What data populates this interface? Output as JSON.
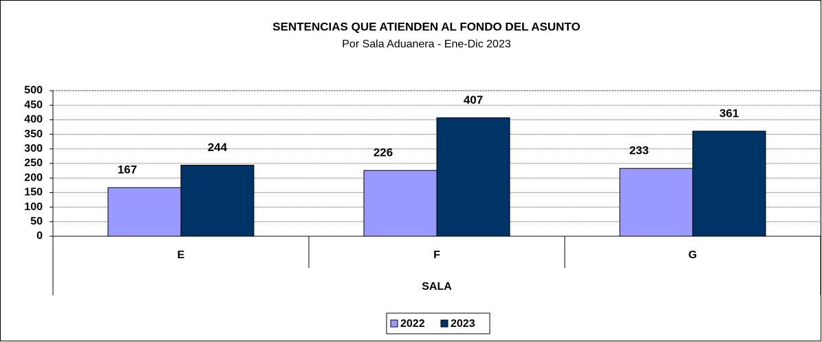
{
  "chart_data": {
    "type": "bar",
    "title": "SENTENCIAS QUE ATIENDEN AL FONDO DEL ASUNTO",
    "subtitle": "Por Sala Aduanera - Ene-Dic 2023",
    "x_label": "SALA",
    "categories": [
      "E",
      "F",
      "G"
    ],
    "series": [
      {
        "name": "2022",
        "color": "#9999ff",
        "values": [
          167,
          226,
          233
        ]
      },
      {
        "name": "2023",
        "color": "#003366",
        "values": [
          244,
          407,
          361
        ]
      }
    ],
    "ylim": [
      0,
      500
    ],
    "yticks": [
      0,
      50,
      100,
      150,
      200,
      250,
      300,
      350,
      400,
      450,
      500
    ],
    "grid": true,
    "legend": "bottom"
  }
}
